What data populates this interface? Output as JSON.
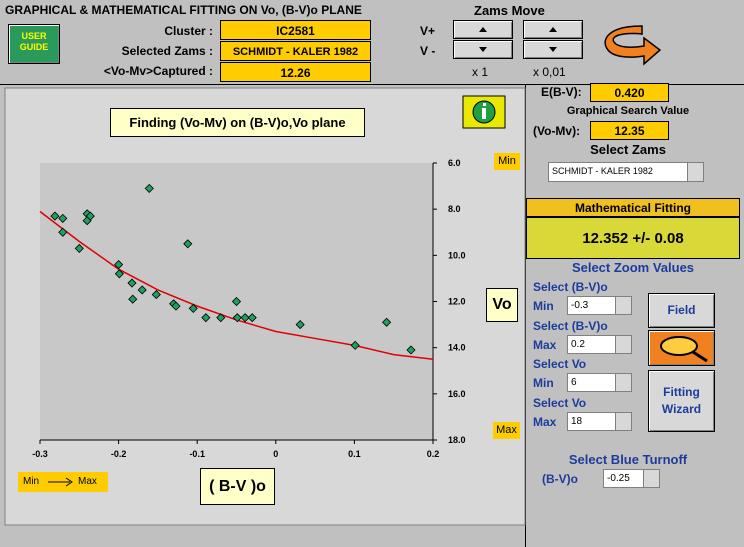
{
  "header": {
    "title": "GRAPHICAL & MATHEMATICAL FITTING ON Vo, (B-V)o PLANE",
    "user_guide": "USER GUIDE",
    "fields": [
      {
        "label": "Cluster :",
        "value": "IC2581"
      },
      {
        "label": "Selected Zams :",
        "value": "SCHMIDT - KALER 1982"
      },
      {
        "label": "<Vo-Mv>Captured :",
        "value": "12.26"
      }
    ],
    "zams_move": {
      "title": "Zams Move",
      "up_label": "V+",
      "down_label": "V -",
      "steps": [
        "x 1",
        "x 0,01"
      ]
    }
  },
  "chart_data": {
    "type": "scatter",
    "title": "Finding (Vo-Mv) on (B-V)o,Vo plane",
    "x_label": "( B-V )o",
    "y_label": "Vo",
    "y_min_label": "Min",
    "y_max_label": "Max",
    "x_direction": {
      "from": "Min",
      "to": "Max"
    },
    "xlim": [
      -0.3,
      0.2
    ],
    "ylim": [
      6,
      18
    ],
    "y_inverted": true,
    "xticks": [
      -0.3,
      -0.2,
      -0.1,
      0,
      0.1,
      0.2
    ],
    "yticks": [
      {
        "value": 6,
        "label": "6.0"
      },
      {
        "value": 8,
        "label": "8.0"
      },
      {
        "value": 10,
        "label": "10.0"
      },
      {
        "value": 12,
        "label": "12.0"
      },
      {
        "value": 14,
        "label": "14.0"
      },
      {
        "value": 16,
        "label": "16.0"
      },
      {
        "value": 18,
        "label": "18.0"
      }
    ],
    "points": {
      "color": "#1fa060",
      "x": [
        -0.281,
        -0.271,
        -0.271,
        -0.25,
        -0.24,
        -0.24,
        -0.236,
        -0.161,
        -0.2,
        -0.199,
        -0.183,
        -0.17,
        -0.182,
        -0.152,
        -0.13,
        -0.127,
        -0.112,
        -0.105,
        -0.089,
        -0.07,
        -0.05,
        -0.049,
        -0.039,
        -0.03,
        0.031,
        0.101,
        0.141,
        0.172
      ],
      "values": [
        8.3,
        8.4,
        9.0,
        9.7,
        8.2,
        8.5,
        8.3,
        7.1,
        10.4,
        10.8,
        11.2,
        11.5,
        11.9,
        11.7,
        12.1,
        12.2,
        9.5,
        12.3,
        12.7,
        12.7,
        12.0,
        12.7,
        12.7,
        12.7,
        13.0,
        13.9,
        12.9,
        14.1
      ]
    },
    "curve": {
      "color": "#e00000",
      "x": [
        -0.3,
        -0.25,
        -0.2,
        -0.15,
        -0.1,
        -0.05,
        0,
        0.05,
        0.1,
        0.15,
        0.2
      ],
      "values": [
        8.1,
        9.4,
        10.6,
        11.5,
        12.2,
        12.8,
        13.3,
        13.6,
        13.9,
        14.3,
        14.5
      ]
    }
  },
  "panel": {
    "ebv": {
      "label": "E(B-V):",
      "value": "0.420"
    },
    "search_title": "Graphical Search Value",
    "vomv": {
      "label": "(Vo-Mv):",
      "value": "12.35"
    },
    "select_zams": {
      "label": "Select Zams",
      "value": "SCHMIDT - KALER 1982"
    },
    "fitting": {
      "title": "Mathematical Fitting",
      "result": "12.352 +/- 0.08"
    },
    "zoom": {
      "title": "Select Zoom Values",
      "rows": [
        {
          "label": "Select (B-V)o",
          "bound": "Min",
          "value": "-0.3"
        },
        {
          "label": "Select (B-V)o",
          "bound": "Max",
          "value": "0.2"
        },
        {
          "label": "Select Vo",
          "bound": "Min",
          "value": "6"
        },
        {
          "label": "Select Vo",
          "bound": "Max",
          "value": "18"
        }
      ]
    },
    "buttons": [
      "Field",
      "Fitting Wizard"
    ],
    "turnoff": {
      "title": "Select Blue Turnoff",
      "label": "(B-V)o",
      "value": "-0.25"
    }
  }
}
